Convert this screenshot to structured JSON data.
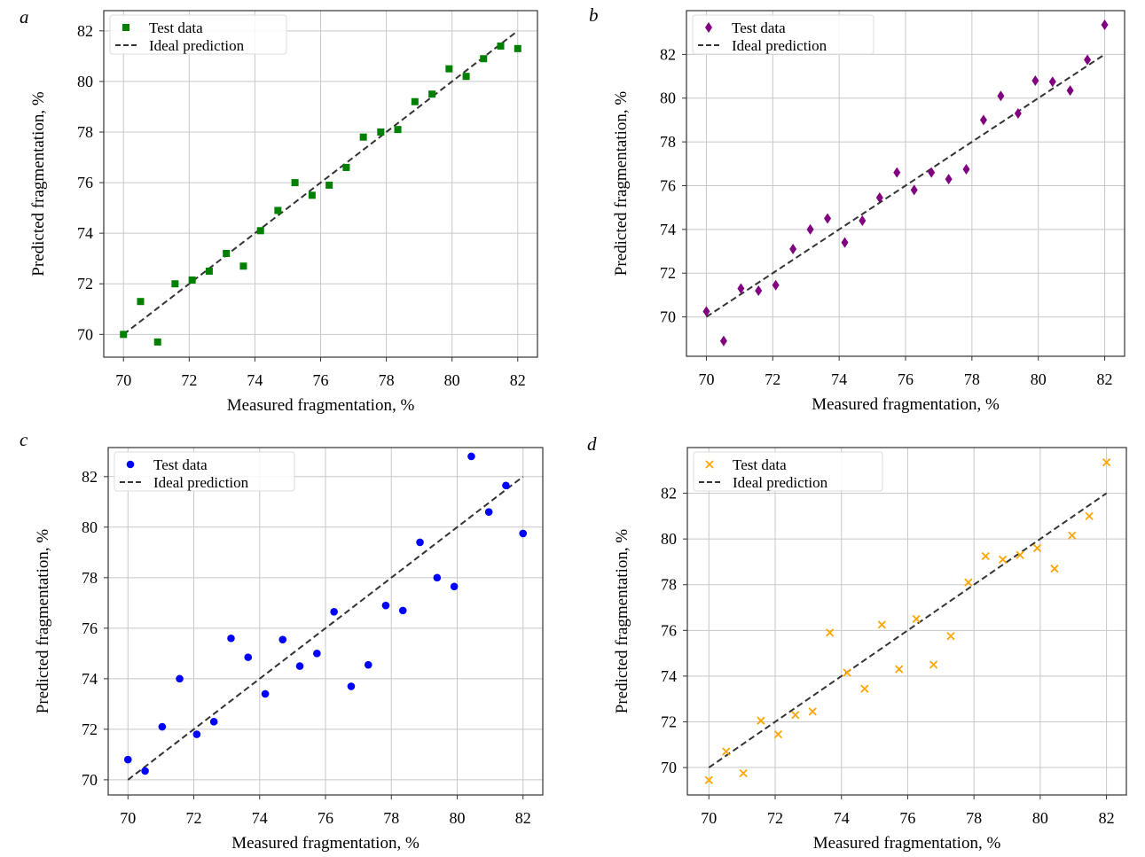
{
  "chart_data": [
    {
      "panel_label": "a",
      "type": "scatter",
      "xlabel": "Measured fragmentation, %",
      "ylabel": "Predicted fragmentation, %",
      "xlim": [
        69.4,
        82.6
      ],
      "ylim": [
        69.1,
        82.8
      ],
      "xticks": [
        70,
        72,
        74,
        76,
        78,
        80,
        82
      ],
      "yticks": [
        70,
        72,
        74,
        76,
        78,
        80,
        82
      ],
      "grid": true,
      "legend": "top-left",
      "series": [
        {
          "name": "Test data",
          "marker": "square",
          "color": "#008000",
          "x": [
            70,
            70.52,
            71.04,
            71.57,
            72.09,
            72.61,
            73.13,
            73.65,
            74.17,
            74.7,
            75.22,
            75.74,
            76.26,
            76.78,
            77.3,
            77.83,
            78.35,
            78.87,
            79.39,
            79.91,
            80.43,
            80.96,
            81.48,
            82
          ],
          "y": [
            70.0,
            71.3,
            69.7,
            72.0,
            72.15,
            72.5,
            73.2,
            72.7,
            74.1,
            74.9,
            76.0,
            75.5,
            75.9,
            76.6,
            77.8,
            78.0,
            78.1,
            79.2,
            79.5,
            80.5,
            80.2,
            80.9,
            81.4,
            81.3
          ]
        },
        {
          "name": "Ideal prediction",
          "line": "dashed",
          "color": "#333333",
          "x": [
            70,
            82
          ],
          "y": [
            70,
            82
          ]
        }
      ]
    },
    {
      "panel_label": "b",
      "type": "scatter",
      "xlabel": "Measured fragmentation, %",
      "ylabel": "Predicted fragmentation, %",
      "xlim": [
        69.4,
        82.6
      ],
      "ylim": [
        68.2,
        84.0
      ],
      "xticks": [
        70,
        72,
        74,
        76,
        78,
        80,
        82
      ],
      "yticks": [
        70,
        72,
        74,
        76,
        78,
        80,
        82
      ],
      "grid": true,
      "legend": "top-left",
      "series": [
        {
          "name": "Test data",
          "marker": "diamond",
          "color": "#800080",
          "x": [
            70,
            70.52,
            71.04,
            71.57,
            72.09,
            72.61,
            73.13,
            73.65,
            74.17,
            74.7,
            75.22,
            75.74,
            76.26,
            76.78,
            77.3,
            77.83,
            78.35,
            78.87,
            79.39,
            79.91,
            80.43,
            80.96,
            81.48,
            82
          ],
          "y": [
            70.25,
            68.9,
            71.3,
            71.2,
            71.45,
            73.1,
            74.0,
            74.5,
            73.4,
            74.4,
            75.45,
            76.6,
            75.8,
            76.6,
            76.3,
            76.75,
            79.0,
            80.1,
            79.3,
            80.8,
            80.75,
            80.35,
            81.75,
            83.35
          ]
        },
        {
          "name": "Ideal prediction",
          "line": "dashed",
          "color": "#333333",
          "x": [
            70,
            82
          ],
          "y": [
            70,
            82
          ]
        }
      ]
    },
    {
      "panel_label": "c",
      "type": "scatter",
      "xlabel": "Measured fragmentation, %",
      "ylabel": "Predicted fragmentation, %",
      "xlim": [
        69.4,
        82.6
      ],
      "ylim": [
        69.4,
        83.15
      ],
      "xticks": [
        70,
        72,
        74,
        76,
        78,
        80,
        82
      ],
      "yticks": [
        70,
        72,
        74,
        76,
        78,
        80,
        82
      ],
      "grid": true,
      "legend": "top-left",
      "series": [
        {
          "name": "Test data",
          "marker": "circle",
          "color": "#0000ff",
          "x": [
            70,
            70.52,
            71.04,
            71.57,
            72.09,
            72.61,
            73.13,
            73.65,
            74.17,
            74.7,
            75.22,
            75.74,
            76.26,
            76.78,
            77.3,
            77.83,
            78.35,
            78.87,
            79.39,
            79.91,
            80.43,
            80.96,
            81.48,
            82
          ],
          "y": [
            70.8,
            70.35,
            72.1,
            74.0,
            71.8,
            72.3,
            75.6,
            74.85,
            73.4,
            75.55,
            74.5,
            75.0,
            76.65,
            73.7,
            74.55,
            76.9,
            76.7,
            79.4,
            78.0,
            77.65,
            82.8,
            80.6,
            81.65,
            79.75
          ]
        },
        {
          "name": "Ideal prediction",
          "line": "dashed",
          "color": "#333333",
          "x": [
            70,
            82
          ],
          "y": [
            70,
            82
          ]
        }
      ]
    },
    {
      "panel_label": "d",
      "type": "scatter",
      "xlabel": "Measured fragmentation, %",
      "ylabel": "Predicted fragmentation, %",
      "xlim": [
        69.35,
        82.6
      ],
      "ylim": [
        68.8,
        84.0
      ],
      "xticks": [
        70,
        72,
        74,
        76,
        78,
        80,
        82
      ],
      "yticks": [
        70,
        72,
        74,
        76,
        78,
        80,
        82
      ],
      "grid": true,
      "legend": "top-left",
      "series": [
        {
          "name": "Test data",
          "marker": "x",
          "color": "#ffa500",
          "x": [
            70,
            70.52,
            71.04,
            71.57,
            72.09,
            72.61,
            73.13,
            73.65,
            74.17,
            74.7,
            75.22,
            75.74,
            76.26,
            76.78,
            77.3,
            77.83,
            78.35,
            78.87,
            79.39,
            79.91,
            80.43,
            80.96,
            81.48,
            82
          ],
          "y": [
            69.45,
            70.7,
            69.75,
            72.05,
            71.45,
            72.3,
            72.45,
            75.9,
            74.15,
            73.45,
            76.25,
            74.3,
            76.5,
            74.5,
            75.75,
            78.1,
            79.25,
            79.1,
            79.3,
            79.6,
            78.7,
            80.15,
            81.0,
            83.35
          ]
        },
        {
          "name": "Ideal prediction",
          "line": "dashed",
          "color": "#333333",
          "x": [
            70,
            82
          ],
          "y": [
            70,
            82
          ]
        }
      ]
    }
  ]
}
